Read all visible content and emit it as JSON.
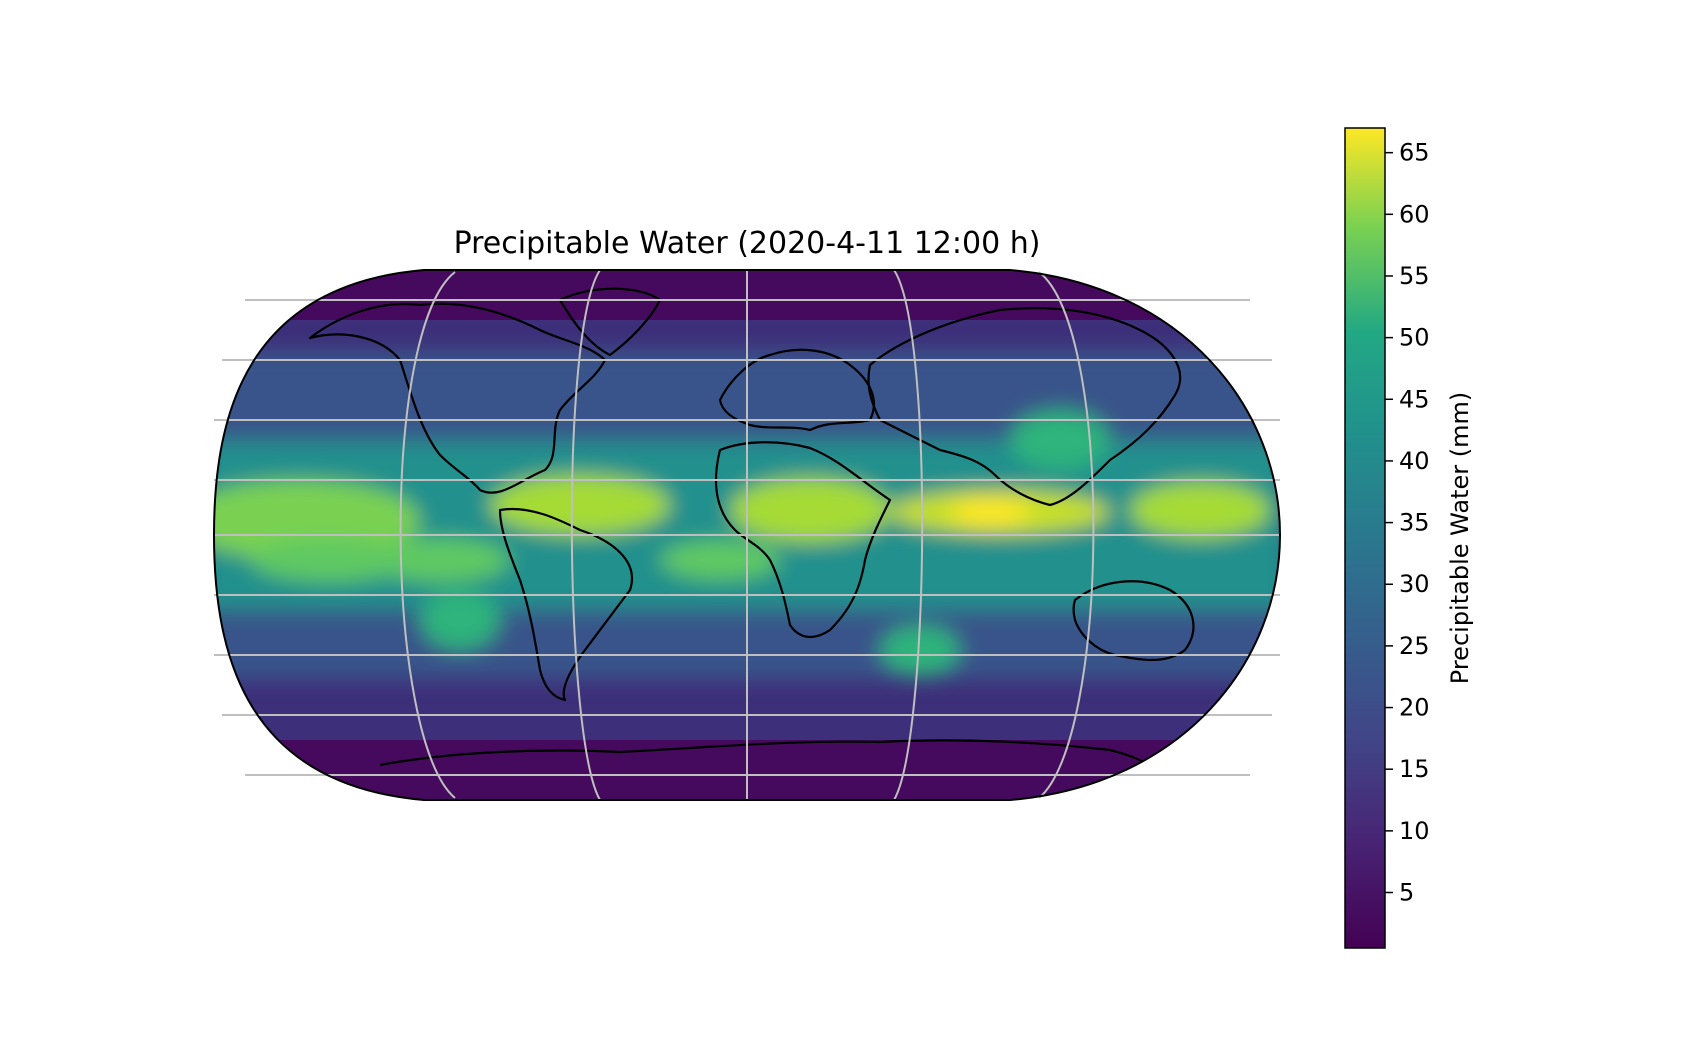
{
  "title": "Precipitable Water (2020-4-11 12:00 h)",
  "colorbar": {
    "label": "Precipitable Water (mm)",
    "min": 0.5,
    "max": 67,
    "ticks": [
      5,
      10,
      15,
      20,
      25,
      30,
      35,
      40,
      45,
      50,
      55,
      60,
      65
    ],
    "tick_labels": [
      "5",
      "10",
      "15",
      "20",
      "25",
      "30",
      "35",
      "40",
      "45",
      "50",
      "55",
      "60",
      "65"
    ],
    "colormap": "viridis"
  },
  "map": {
    "projection": "Equal Earth",
    "gridlines": true,
    "coastlines": true,
    "field": "precipitable water"
  },
  "colors": {
    "gridline": "#bfbfbf",
    "coastline": "#000000",
    "viridis_low": "#440154",
    "viridis_mid": "#21918c",
    "viridis_high": "#fde725"
  }
}
